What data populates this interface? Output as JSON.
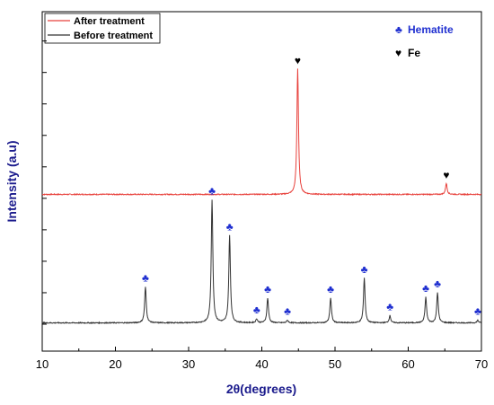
{
  "chart_data": {
    "type": "line",
    "xlabel": "2θ(degrees)",
    "ylabel": "Intensity (a.u)",
    "xlim": [
      10,
      70
    ],
    "xticks": [
      10,
      20,
      30,
      40,
      50,
      60,
      70
    ],
    "grid": false,
    "legend_position": "top-left",
    "series": [
      {
        "name": "After treatment",
        "color": "#e8413c",
        "baseline": 1.98,
        "peaks": [
          {
            "x": 44.9,
            "height": 1.92
          },
          {
            "x": 65.2,
            "height": 0.17
          }
        ]
      },
      {
        "name": "Before treatment",
        "color": "#333333",
        "baseline": 0.02,
        "peaks": [
          {
            "x": 24.1,
            "height": 0.55
          },
          {
            "x": 33.2,
            "height": 1.88
          },
          {
            "x": 35.6,
            "height": 1.33
          },
          {
            "x": 39.3,
            "height": 0.06
          },
          {
            "x": 40.8,
            "height": 0.38
          },
          {
            "x": 43.5,
            "height": 0.04
          },
          {
            "x": 49.4,
            "height": 0.38
          },
          {
            "x": 54.0,
            "height": 0.68
          },
          {
            "x": 57.5,
            "height": 0.11
          },
          {
            "x": 62.4,
            "height": 0.39
          },
          {
            "x": 64.0,
            "height": 0.46
          },
          {
            "x": 69.5,
            "height": 0.04
          }
        ]
      }
    ],
    "markers": {
      "hematite": {
        "symbol": "♣",
        "color": "#1f2fd0",
        "positions": [
          24.1,
          33.2,
          35.6,
          39.3,
          40.8,
          43.5,
          49.4,
          54.0,
          57.5,
          62.4,
          64.0,
          69.5
        ]
      },
      "fe": {
        "symbol": "♥",
        "color": "#000000",
        "positions": [
          44.9,
          65.2
        ]
      }
    },
    "phase_key": [
      {
        "symbol": "♣",
        "label": "Hematite",
        "color": "#1f2fd0"
      },
      {
        "symbol": "♥",
        "label": "Fe",
        "color": "#000000"
      }
    ]
  }
}
